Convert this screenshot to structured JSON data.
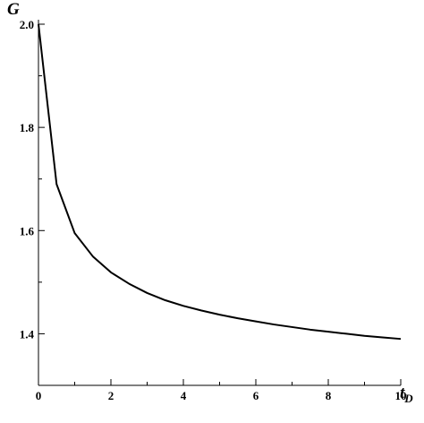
{
  "chart_data": {
    "type": "line",
    "title": "",
    "ylabel": "G",
    "xlabel_main": "t",
    "xlabel_sub": "D",
    "xlim": [
      0,
      10
    ],
    "ylim": [
      1.3,
      2.0
    ],
    "x_ticks": [
      0,
      2,
      4,
      6,
      8,
      10
    ],
    "x_tick_labels": [
      "0",
      "2",
      "4",
      "6",
      "8",
      "10"
    ],
    "x_minor_ticks": [
      1,
      3,
      5,
      7,
      9
    ],
    "y_ticks": [
      1.4,
      1.6,
      1.8,
      2.0
    ],
    "y_tick_labels": [
      "1.4",
      "1.6",
      "1.8",
      "2.0"
    ],
    "y_minor_ticks": [
      1.3,
      1.5,
      1.7,
      1.9
    ],
    "grid": false,
    "series": [
      {
        "x": [
          0,
          0.5,
          1,
          1.5,
          2,
          2.5,
          3,
          3.5,
          4,
          4.5,
          5,
          5.5,
          6,
          6.5,
          7,
          7.5,
          8,
          8.5,
          9,
          9.5,
          10
        ],
        "y": [
          2.0,
          1.69,
          1.595,
          1.55,
          1.519,
          1.497,
          1.479,
          1.465,
          1.454,
          1.445,
          1.437,
          1.43,
          1.424,
          1.418,
          1.413,
          1.408,
          1.404,
          1.4,
          1.396,
          1.393,
          1.39
        ],
        "color": "#000000"
      }
    ]
  }
}
